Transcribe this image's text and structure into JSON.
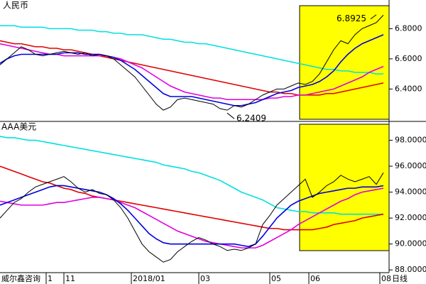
{
  "watermark": "威尔鑫咨询",
  "period_label": "日线",
  "chart_data": [
    {
      "type": "line",
      "title": "人民币",
      "xlim": [
        0,
        54
      ],
      "ylim": [
        6.19,
        6.99
      ],
      "yticks": [
        {
          "value": 6.8,
          "label": "6.8000"
        },
        {
          "value": 6.6,
          "label": "6.6000"
        },
        {
          "value": 6.4,
          "label": "6.4000"
        }
      ],
      "annotations": [
        {
          "x": 53,
          "value": 6.8925
        },
        {
          "x": 32,
          "value": 6.2409
        }
      ],
      "series": [
        {
          "color": "#00e0e0",
          "values": [
            6.82,
            6.82,
            6.82,
            6.81,
            6.81,
            6.81,
            6.81,
            6.8,
            6.8,
            6.8,
            6.8,
            6.79,
            6.79,
            6.79,
            6.78,
            6.78,
            6.77,
            6.77,
            6.76,
            6.76,
            6.76,
            6.75,
            6.74,
            6.73,
            6.73,
            6.72,
            6.71,
            6.71,
            6.7,
            6.7,
            6.69,
            6.68,
            6.67,
            6.66,
            6.65,
            6.64,
            6.63,
            6.62,
            6.61,
            6.6,
            6.59,
            6.58,
            6.57,
            6.56,
            6.55,
            6.54,
            6.53,
            6.53,
            6.52,
            6.52,
            6.51,
            6.51,
            6.51,
            6.5,
            6.5
          ]
        },
        {
          "color": "#e00000",
          "values": [
            6.72,
            6.71,
            6.7,
            6.7,
            6.69,
            6.68,
            6.68,
            6.67,
            6.67,
            6.66,
            6.66,
            6.65,
            6.64,
            6.63,
            6.62,
            6.61,
            6.6,
            6.59,
            6.58,
            6.57,
            6.56,
            6.55,
            6.54,
            6.53,
            6.52,
            6.51,
            6.5,
            6.49,
            6.48,
            6.47,
            6.46,
            6.45,
            6.44,
            6.43,
            6.42,
            6.41,
            6.4,
            6.39,
            6.38,
            6.38,
            6.37,
            6.37,
            6.36,
            6.36,
            6.36,
            6.36,
            6.37,
            6.37,
            6.38,
            6.39,
            6.4,
            6.41,
            6.42,
            6.43,
            6.44
          ]
        },
        {
          "color": "#e000e0",
          "values": [
            6.7,
            6.69,
            6.68,
            6.67,
            6.66,
            6.65,
            6.64,
            6.63,
            6.63,
            6.62,
            6.62,
            6.62,
            6.62,
            6.62,
            6.62,
            6.62,
            6.61,
            6.6,
            6.58,
            6.56,
            6.54,
            6.51,
            6.48,
            6.45,
            6.42,
            6.4,
            6.38,
            6.37,
            6.36,
            6.35,
            6.34,
            6.34,
            6.33,
            6.33,
            6.33,
            6.33,
            6.33,
            6.33,
            6.34,
            6.34,
            6.35,
            6.35,
            6.36,
            6.36,
            6.37,
            6.38,
            6.39,
            6.4,
            6.42,
            6.44,
            6.46,
            6.48,
            6.51,
            6.53,
            6.55
          ]
        },
        {
          "color": "#0000e0",
          "values": [
            6.57,
            6.6,
            6.62,
            6.63,
            6.63,
            6.63,
            6.63,
            6.63,
            6.63,
            6.64,
            6.64,
            6.64,
            6.63,
            6.63,
            6.63,
            6.62,
            6.61,
            6.59,
            6.56,
            6.53,
            6.49,
            6.45,
            6.41,
            6.37,
            6.35,
            6.35,
            6.35,
            6.35,
            6.34,
            6.33,
            6.32,
            6.31,
            6.3,
            6.29,
            6.29,
            6.3,
            6.31,
            6.33,
            6.35,
            6.37,
            6.38,
            6.39,
            6.41,
            6.42,
            6.43,
            6.45,
            6.48,
            6.52,
            6.58,
            6.63,
            6.67,
            6.7,
            6.72,
            6.74,
            6.76
          ]
        },
        {
          "color": "#000000",
          "values": [
            6.56,
            6.6,
            6.64,
            6.68,
            6.66,
            6.63,
            6.62,
            6.63,
            6.64,
            6.65,
            6.64,
            6.63,
            6.64,
            6.62,
            6.63,
            6.62,
            6.6,
            6.56,
            6.52,
            6.48,
            6.42,
            6.36,
            6.3,
            6.26,
            6.28,
            6.33,
            6.34,
            6.33,
            6.32,
            6.31,
            6.3,
            6.27,
            6.26,
            6.29,
            6.28,
            6.3,
            6.33,
            6.36,
            6.38,
            6.4,
            6.4,
            6.42,
            6.44,
            6.43,
            6.45,
            6.5,
            6.58,
            6.66,
            6.72,
            6.7,
            6.76,
            6.8,
            6.82,
            6.84,
            6.89
          ]
        }
      ]
    },
    {
      "type": "line",
      "title": "AAA美元",
      "xlim": [
        0,
        54
      ],
      "ylim": [
        87.9,
        99.4
      ],
      "yticks": [
        {
          "value": 98,
          "label": "98.0000"
        },
        {
          "value": 96,
          "label": "96.0000"
        },
        {
          "value": 94,
          "label": "94.0000"
        },
        {
          "value": 92,
          "label": "92.0000"
        },
        {
          "value": 90,
          "label": "90.0000"
        },
        {
          "value": 88,
          "label": "88.0000"
        }
      ],
      "xticks": [
        {
          "value": 6.5,
          "label": "1"
        },
        {
          "value": 9,
          "label": "11"
        },
        {
          "value": 18.5,
          "label": "2018/01"
        },
        {
          "value": 28,
          "label": "03"
        },
        {
          "value": 38,
          "label": "05"
        },
        {
          "value": 43.5,
          "label": "06"
        },
        {
          "value": 53.5,
          "label": "08"
        }
      ],
      "series": [
        {
          "color": "#00e0e0",
          "values": [
            98.3,
            98.2,
            98.2,
            98.1,
            98.0,
            98.0,
            97.9,
            97.8,
            97.7,
            97.6,
            97.5,
            97.4,
            97.3,
            97.2,
            97.1,
            97.0,
            96.9,
            96.8,
            96.7,
            96.6,
            96.5,
            96.4,
            96.3,
            96.1,
            96.0,
            95.9,
            95.8,
            95.6,
            95.5,
            95.3,
            95.1,
            94.9,
            94.6,
            94.3,
            94.0,
            93.8,
            93.6,
            93.4,
            93.1,
            92.8,
            92.7,
            92.6,
            92.5,
            92.5,
            92.4,
            92.4,
            92.4,
            92.4,
            92.3,
            92.3,
            92.3,
            92.3,
            92.3,
            92.3,
            92.3
          ]
        },
        {
          "color": "#e00000",
          "values": [
            96.0,
            95.8,
            95.6,
            95.4,
            95.2,
            95.0,
            94.8,
            94.7,
            94.5,
            94.3,
            94.2,
            94.0,
            93.9,
            93.7,
            93.6,
            93.5,
            93.4,
            93.3,
            93.2,
            93.1,
            93.0,
            92.9,
            92.8,
            92.7,
            92.6,
            92.5,
            92.4,
            92.3,
            92.2,
            92.1,
            92.0,
            91.9,
            91.8,
            91.7,
            91.6,
            91.5,
            91.4,
            91.3,
            91.2,
            91.2,
            91.1,
            91.1,
            91.1,
            91.1,
            91.1,
            91.2,
            91.3,
            91.5,
            91.6,
            91.7,
            91.8,
            92.0,
            92.1,
            92.2,
            92.3
          ]
        },
        {
          "color": "#e000e0",
          "values": [
            93.3,
            93.2,
            93.1,
            93.0,
            93.0,
            93.0,
            93.0,
            93.1,
            93.2,
            93.2,
            93.3,
            93.4,
            93.5,
            93.6,
            93.6,
            93.5,
            93.4,
            93.2,
            93.0,
            92.8,
            92.5,
            92.2,
            91.9,
            91.6,
            91.3,
            91.0,
            90.8,
            90.6,
            90.4,
            90.2,
            90.1,
            90.0,
            89.9,
            89.8,
            89.7,
            89.7,
            89.7,
            89.9,
            90.2,
            90.5,
            90.8,
            91.1,
            91.5,
            91.8,
            92.1,
            92.4,
            92.7,
            93.0,
            93.3,
            93.5,
            93.8,
            94.0,
            94.1,
            94.2,
            94.3
          ]
        },
        {
          "color": "#0000e0",
          "values": [
            93.0,
            93.2,
            93.4,
            93.6,
            93.8,
            94.0,
            94.2,
            94.4,
            94.5,
            94.5,
            94.4,
            94.3,
            94.2,
            94.1,
            94.0,
            93.8,
            93.5,
            93.1,
            92.6,
            92.0,
            91.4,
            90.8,
            90.4,
            90.1,
            90.0,
            90.0,
            90.0,
            90.0,
            90.0,
            90.0,
            90.0,
            90.0,
            90.0,
            90.0,
            89.9,
            89.8,
            90.0,
            90.6,
            91.3,
            92.0,
            92.5,
            93.0,
            93.3,
            93.5,
            93.7,
            93.9,
            94.0,
            94.1,
            94.2,
            94.3,
            94.3,
            94.4,
            94.4,
            94.4,
            94.5
          ]
        },
        {
          "color": "#000000",
          "values": [
            92.0,
            92.6,
            93.2,
            93.5,
            94.0,
            94.4,
            94.6,
            94.8,
            95.0,
            95.2,
            94.8,
            94.3,
            94.0,
            94.2,
            93.9,
            93.8,
            93.4,
            92.8,
            92.0,
            91.0,
            90.0,
            89.4,
            89.0,
            88.6,
            88.8,
            89.4,
            89.8,
            90.2,
            90.5,
            90.3,
            90.0,
            89.8,
            89.5,
            89.6,
            89.5,
            89.7,
            90.0,
            91.5,
            92.2,
            93.0,
            93.5,
            94.0,
            94.5,
            95.0,
            93.6,
            94.0,
            94.5,
            94.8,
            95.3,
            95.0,
            94.8,
            95.0,
            95.2,
            94.6,
            95.5
          ]
        }
      ]
    }
  ]
}
